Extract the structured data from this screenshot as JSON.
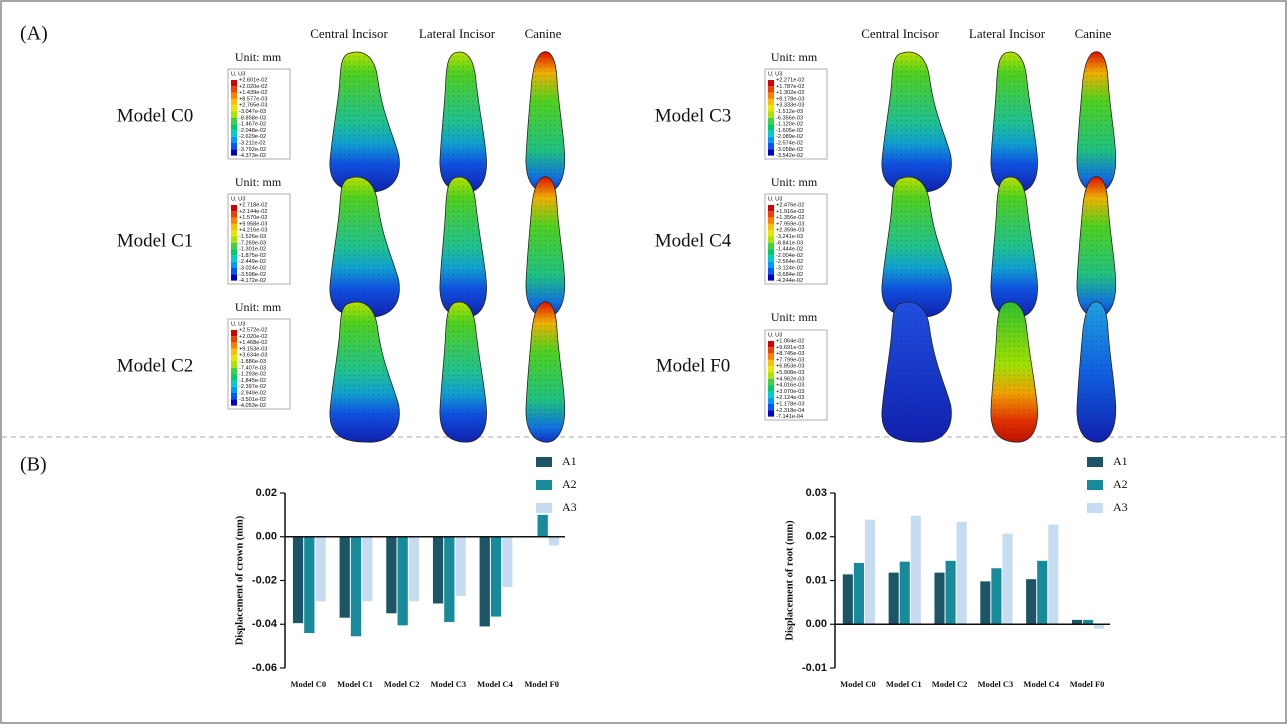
{
  "panel_a": {
    "label": "(A)",
    "groups": [
      {
        "column_headers": [
          "Central Incisor",
          "Lateral Incisor",
          "Canine"
        ],
        "models": [
          {
            "name": "Model C0",
            "unit": "Unit: mm",
            "legend_title": "U, U3",
            "legend_values": [
              "+2.601e-02",
              "+2.020e-02",
              "+1.439e-02",
              "+8.577e-03",
              "+2.765e-03",
              "-3.047e-03",
              "-8.858e-03",
              "-1.467e-02",
              "-2.048e-02",
              "-2.629e-02",
              "-3.211e-02",
              "-3.792e-02",
              "-4.373e-02"
            ]
          },
          {
            "name": "Model C1",
            "unit": "Unit: mm",
            "legend_title": "U, U3",
            "legend_values": [
              "+2.718e-02",
              "+2.144e-02",
              "+1.570e-02",
              "+9.958e-03",
              "+4.216e-03",
              "-1.526e-03",
              "-7.269e-03",
              "-1.301e-02",
              "-1.875e-02",
              "-2.449e-02",
              "-3.024e-02",
              "-3.598e-02",
              "-4.172e-02"
            ]
          },
          {
            "name": "Model C2",
            "unit": "Unit: mm",
            "legend_title": "U, U3",
            "legend_values": [
              "+2.572e-02",
              "+2.020e-02",
              "+1.468e-02",
              "+9.153e-03",
              "+3.634e-03",
              "-1.886e-03",
              "-7.407e-03",
              "-1.293e-02",
              "-1.845e-02",
              "-2.397e-02",
              "-2.949e-02",
              "-3.501e-02",
              "-4.053e-02"
            ]
          }
        ]
      },
      {
        "column_headers": [
          "Central Incisor",
          "Lateral Incisor",
          "Canine"
        ],
        "models": [
          {
            "name": "Model C3",
            "unit": "Unit: mm",
            "legend_title": "U, U3",
            "legend_values": [
              "+2.271e-02",
              "+1.787e-02",
              "+1.302e-02",
              "+8.178e-03",
              "+3.333e-03",
              "-1.512e-03",
              "-6.356e-03",
              "-1.120e-02",
              "-1.605e-02",
              "-2.089e-02",
              "-2.574e-02",
              "-3.058e-02",
              "-3.542e-02"
            ]
          },
          {
            "name": "Model C4",
            "unit": "Unit: mm",
            "legend_title": "U, U3",
            "legend_values": [
              "+2.476e-02",
              "+1.916e-02",
              "+1.356e-02",
              "+7.959e-03",
              "+2.359e-03",
              "-3.241e-03",
              "-8.841e-03",
              "-1.444e-02",
              "-2.004e-02",
              "-2.564e-02",
              "-3.124e-02",
              "-3.684e-02",
              "-4.244e-02"
            ]
          },
          {
            "name": "Model F0",
            "unit": "Unit: mm",
            "legend_title": "U, U3",
            "legend_values": [
              "+1.064e-02",
              "+9.691e-03",
              "+8.745e-03",
              "+7.799e-03",
              "+6.853e-03",
              "+5.908e-03",
              "+4.962e-03",
              "+4.016e-03",
              "+3.070e-03",
              "+2.124e-03",
              "+1.178e-03",
              "+2.318e-04",
              "-7.141e-04"
            ]
          }
        ]
      }
    ]
  },
  "panel_b": {
    "label": "(B)"
  },
  "chart_data": [
    {
      "type": "bar",
      "y_label": "Displacement of crown (mm)",
      "categories": [
        "Model C0",
        "Model C1",
        "Model C2",
        "Model C3",
        "Model C4",
        "Model F0"
      ],
      "series": [
        {
          "name": "A1",
          "color": "#1b5566",
          "values": [
            -0.0395,
            -0.037,
            -0.035,
            -0.0305,
            -0.041,
            0
          ]
        },
        {
          "name": "A2",
          "color": "#178a9b",
          "values": [
            -0.044,
            -0.0455,
            -0.0405,
            -0.039,
            -0.0365,
            0.01
          ]
        },
        {
          "name": "A3",
          "color": "#c6dcf0",
          "values": [
            -0.0295,
            -0.0295,
            -0.0295,
            -0.027,
            -0.023,
            -0.004
          ]
        }
      ],
      "ylim": [
        -0.06,
        0.02
      ],
      "yticks": [
        -0.06,
        -0.04,
        -0.02,
        {
          "value": 0,
          "label": "0.00"
        },
        0.02
      ],
      "legend": "top-right"
    },
    {
      "type": "bar",
      "y_label": "Displacement of root (mm)",
      "categories": [
        "Model C0",
        "Model C1",
        "Model C2",
        "Model C3",
        "Model C4",
        "Model F0"
      ],
      "series": [
        {
          "name": "A1",
          "color": "#1b5566",
          "values": [
            0.0114,
            0.0118,
            0.0118,
            0.0098,
            0.0103,
            0.001
          ]
        },
        {
          "name": "A2",
          "color": "#178a9b",
          "values": [
            0.014,
            0.0143,
            0.0145,
            0.0128,
            0.0145,
            0.001
          ]
        },
        {
          "name": "A3",
          "color": "#c6dcf0",
          "values": [
            0.0239,
            0.0248,
            0.0234,
            0.0207,
            0.0228,
            -0.001
          ]
        }
      ],
      "ylim": [
        -0.01,
        0.03
      ],
      "yticks": [
        -0.01,
        {
          "value": 0,
          "label": "0.00"
        },
        0.01,
        0.02,
        0.03
      ],
      "legend": "top-right"
    }
  ]
}
